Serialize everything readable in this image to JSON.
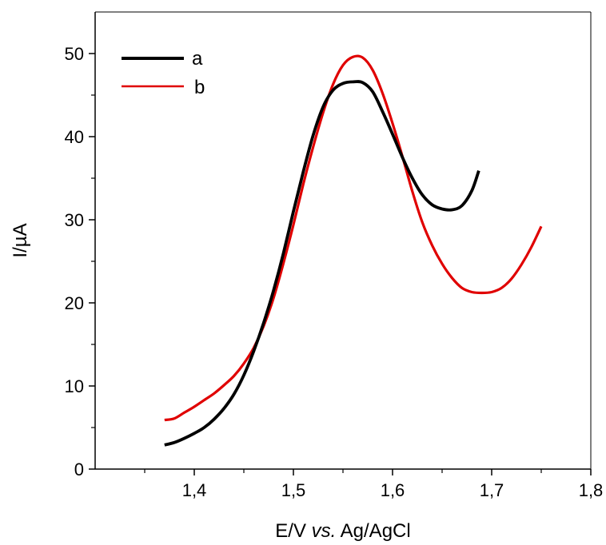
{
  "chart_data": {
    "type": "line",
    "xlabel_parts": [
      "E/V ",
      "vs.",
      " Ag/AgCl"
    ],
    "ylabel": "I/µA",
    "xlim": [
      1.3,
      1.8
    ],
    "ylim": [
      0,
      55
    ],
    "x_ticks": [
      {
        "v": 1.4,
        "label": "1,4"
      },
      {
        "v": 1.5,
        "label": "1,5"
      },
      {
        "v": 1.6,
        "label": "1,6"
      },
      {
        "v": 1.7,
        "label": "1,7"
      },
      {
        "v": 1.8,
        "label": "1,8"
      }
    ],
    "y_ticks": [
      {
        "v": 0,
        "label": "0"
      },
      {
        "v": 10,
        "label": "10"
      },
      {
        "v": 20,
        "label": "20"
      },
      {
        "v": 30,
        "label": "30"
      },
      {
        "v": 40,
        "label": "40"
      },
      {
        "v": 50,
        "label": "50"
      }
    ],
    "grid": false,
    "legend_position": "top-left",
    "series": [
      {
        "name": "a",
        "color": "#000000",
        "x": [
          1.37,
          1.38,
          1.39,
          1.4,
          1.41,
          1.42,
          1.43,
          1.44,
          1.45,
          1.46,
          1.47,
          1.48,
          1.49,
          1.5,
          1.51,
          1.52,
          1.53,
          1.54,
          1.55,
          1.56,
          1.57,
          1.58,
          1.59,
          1.6,
          1.61,
          1.62,
          1.63,
          1.64,
          1.65,
          1.66,
          1.67,
          1.68,
          1.687
        ],
        "y": [
          2.9,
          3.2,
          3.7,
          4.3,
          5.0,
          6.0,
          7.3,
          9.0,
          11.3,
          14.2,
          17.6,
          21.5,
          26.0,
          31.0,
          35.8,
          40.2,
          43.6,
          45.6,
          46.4,
          46.6,
          46.5,
          45.4,
          43.0,
          40.3,
          37.5,
          35.0,
          33.0,
          31.8,
          31.3,
          31.2,
          31.7,
          33.5,
          35.9
        ]
      },
      {
        "name": "b",
        "color": "#e00000",
        "x": [
          1.37,
          1.38,
          1.39,
          1.4,
          1.41,
          1.42,
          1.43,
          1.44,
          1.45,
          1.46,
          1.47,
          1.48,
          1.49,
          1.5,
          1.51,
          1.52,
          1.53,
          1.54,
          1.55,
          1.56,
          1.57,
          1.58,
          1.59,
          1.6,
          1.61,
          1.62,
          1.63,
          1.64,
          1.65,
          1.66,
          1.67,
          1.68,
          1.69,
          1.7,
          1.71,
          1.72,
          1.73,
          1.74,
          1.75
        ],
        "y": [
          5.9,
          6.1,
          6.8,
          7.5,
          8.3,
          9.1,
          10.1,
          11.2,
          12.7,
          14.6,
          17.2,
          20.6,
          24.8,
          29.4,
          34.3,
          38.8,
          42.9,
          46.3,
          48.6,
          49.6,
          49.5,
          48.0,
          45.2,
          41.6,
          37.6,
          33.4,
          29.7,
          26.9,
          24.7,
          23.0,
          21.8,
          21.3,
          21.2,
          21.3,
          21.8,
          22.9,
          24.6,
          26.7,
          29.2
        ]
      }
    ]
  }
}
